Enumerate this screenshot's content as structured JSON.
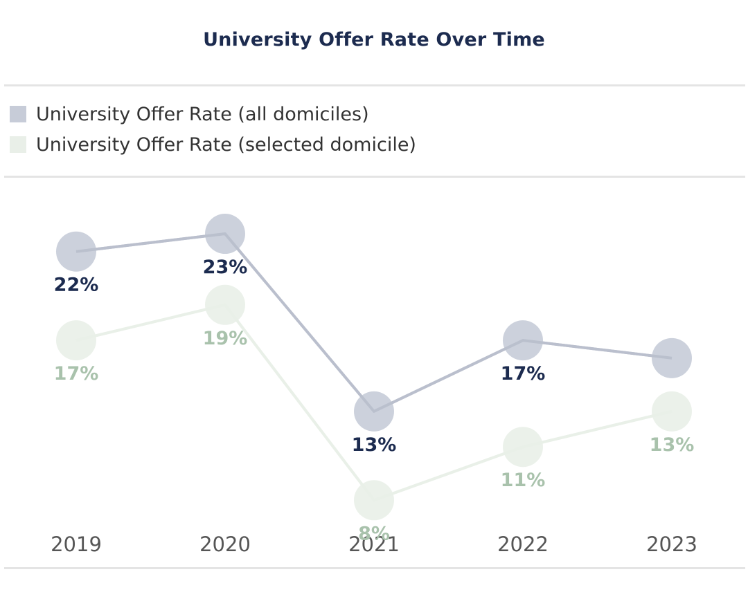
{
  "chart_data": {
    "type": "line",
    "title": "University Offer Rate Over Time",
    "xlabel": "",
    "ylabel": "",
    "categories": [
      "2019",
      "2020",
      "2021",
      "2022",
      "2023"
    ],
    "series": [
      {
        "name": "University Offer Rate (all domiciles)",
        "values": [
          22,
          23,
          13,
          17,
          16
        ],
        "labels": [
          "22%",
          "23%",
          "13%",
          "17%",
          ""
        ],
        "label_position": [
          "below",
          "below",
          "below",
          "below",
          "none"
        ],
        "color": "#c7ccd8",
        "line_color": "#b9bfcc",
        "label_color": "#1c2b4f"
      },
      {
        "name": "University Offer Rate (selected domicile)",
        "values": [
          17,
          19,
          8,
          11,
          13
        ],
        "labels": [
          "17%",
          "19%",
          "8%",
          "11%",
          "13%"
        ],
        "label_position": [
          "below",
          "below",
          "below",
          "below",
          "below"
        ],
        "color": "#e9efe8",
        "line_color": "#e9efe8",
        "label_color": "#a9c2ac"
      }
    ],
    "ylim": [
      4,
      26
    ],
    "grid": false,
    "legend": "top-left"
  }
}
